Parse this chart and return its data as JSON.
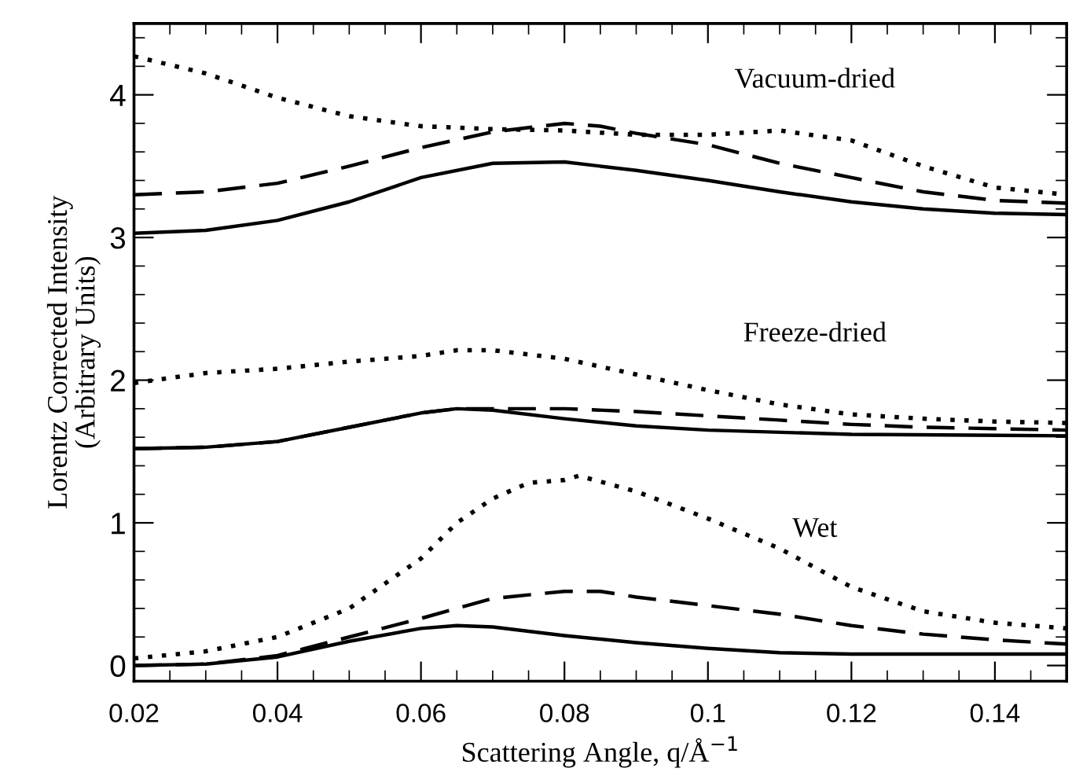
{
  "chart_data": {
    "type": "line",
    "xlabel": "Scattering Angle, q/Å$^{−1}$",
    "ylabel": "Lorentz Corrected Intensity\n(Arbitrary Units)",
    "xlim": [
      0.02,
      0.15
    ],
    "xticks": [
      0.02,
      0.04,
      0.06,
      0.08,
      0.1,
      0.12,
      0.14
    ],
    "ylim": [
      -0.11,
      4.5
    ],
    "yticks": [
      0,
      1,
      2,
      3,
      4
    ],
    "grid": false,
    "legend": false,
    "marker": "none",
    "series": [
      {
        "color": "#000000",
        "line_style": "solid",
        "x": [
          0.02,
          0.03,
          0.04,
          0.05,
          0.06,
          0.07,
          0.08,
          0.09,
          0.1,
          0.11,
          0.12,
          0.13,
          0.14,
          0.15
        ],
        "values": [
          3.03,
          3.05,
          3.12,
          3.25,
          3.42,
          3.52,
          3.53,
          3.47,
          3.4,
          3.32,
          3.25,
          3.2,
          3.17,
          3.16
        ]
      },
      {
        "color": "#000000",
        "line_style": "dashed",
        "x": [
          0.02,
          0.03,
          0.04,
          0.05,
          0.06,
          0.07,
          0.08,
          0.085,
          0.09,
          0.1,
          0.11,
          0.12,
          0.13,
          0.14,
          0.15
        ],
        "values": [
          3.3,
          3.32,
          3.38,
          3.5,
          3.63,
          3.74,
          3.8,
          3.78,
          3.73,
          3.65,
          3.52,
          3.42,
          3.32,
          3.26,
          3.24
        ]
      },
      {
        "color": "#000000",
        "line_style": "dotted",
        "x": [
          0.02,
          0.03,
          0.04,
          0.05,
          0.06,
          0.07,
          0.08,
          0.09,
          0.1,
          0.11,
          0.12,
          0.13,
          0.14,
          0.15
        ],
        "values": [
          4.27,
          4.15,
          3.98,
          3.85,
          3.78,
          3.76,
          3.75,
          3.72,
          3.72,
          3.75,
          3.68,
          3.5,
          3.35,
          3.3
        ]
      },
      {
        "color": "#000000",
        "line_style": "solid",
        "x": [
          0.02,
          0.03,
          0.04,
          0.05,
          0.06,
          0.065,
          0.07,
          0.08,
          0.09,
          0.1,
          0.12,
          0.15
        ],
        "values": [
          1.52,
          1.53,
          1.57,
          1.67,
          1.77,
          1.8,
          1.79,
          1.73,
          1.68,
          1.65,
          1.62,
          1.61
        ]
      },
      {
        "color": "#000000",
        "line_style": "dashed",
        "x": [
          0.02,
          0.03,
          0.04,
          0.05,
          0.06,
          0.065,
          0.07,
          0.08,
          0.09,
          0.1,
          0.11,
          0.12,
          0.13,
          0.14,
          0.15
        ],
        "values": [
          1.52,
          1.53,
          1.57,
          1.67,
          1.77,
          1.8,
          1.8,
          1.8,
          1.78,
          1.75,
          1.72,
          1.69,
          1.67,
          1.66,
          1.65
        ]
      },
      {
        "color": "#000000",
        "line_style": "dotted",
        "x": [
          0.02,
          0.03,
          0.04,
          0.05,
          0.06,
          0.065,
          0.07,
          0.08,
          0.09,
          0.1,
          0.11,
          0.12,
          0.13,
          0.14,
          0.15
        ],
        "values": [
          1.98,
          2.05,
          2.08,
          2.13,
          2.17,
          2.21,
          2.21,
          2.15,
          2.04,
          1.93,
          1.83,
          1.76,
          1.73,
          1.71,
          1.7
        ]
      },
      {
        "color": "#000000",
        "line_style": "solid",
        "x": [
          0.02,
          0.03,
          0.04,
          0.05,
          0.06,
          0.065,
          0.07,
          0.08,
          0.09,
          0.1,
          0.11,
          0.12,
          0.15
        ],
        "values": [
          0.0,
          0.01,
          0.06,
          0.17,
          0.26,
          0.28,
          0.27,
          0.21,
          0.16,
          0.12,
          0.09,
          0.08,
          0.08
        ]
      },
      {
        "color": "#000000",
        "line_style": "dashed",
        "x": [
          0.02,
          0.03,
          0.04,
          0.05,
          0.06,
          0.07,
          0.08,
          0.085,
          0.09,
          0.1,
          0.11,
          0.12,
          0.13,
          0.14,
          0.15
        ],
        "values": [
          0.0,
          0.01,
          0.07,
          0.2,
          0.33,
          0.47,
          0.52,
          0.52,
          0.48,
          0.42,
          0.36,
          0.28,
          0.22,
          0.18,
          0.15
        ]
      },
      {
        "color": "#000000",
        "line_style": "dotted",
        "x": [
          0.02,
          0.03,
          0.04,
          0.05,
          0.06,
          0.065,
          0.07,
          0.075,
          0.08,
          0.082,
          0.09,
          0.1,
          0.11,
          0.12,
          0.13,
          0.14,
          0.15
        ],
        "values": [
          0.05,
          0.1,
          0.2,
          0.4,
          0.75,
          1.0,
          1.17,
          1.28,
          1.3,
          1.33,
          1.22,
          1.03,
          0.82,
          0.55,
          0.38,
          0.3,
          0.26
        ]
      }
    ],
    "annotations": [
      "Vacuum-dried",
      "Freeze-dried",
      "Wet"
    ]
  }
}
